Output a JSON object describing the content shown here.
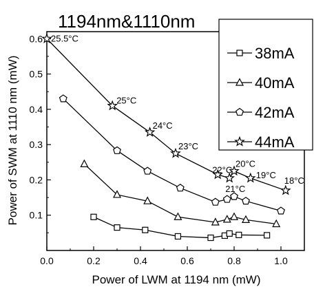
{
  "chart_data": {
    "type": "line",
    "title": "1194nm&1110nm",
    "xlabel": "Power of LWM at 1194 nm (mW)",
    "ylabel": "Power of SWM at 1110 nm (mW)",
    "xlim": [
      0.0,
      1.1
    ],
    "ylim": [
      0.0,
      0.62
    ],
    "xticks": [
      0.0,
      0.2,
      0.4,
      0.6,
      0.8,
      1.0
    ],
    "xtick_labels": [
      "0.0",
      "0.2",
      "0.4",
      "0.6",
      "0.8",
      "1.0"
    ],
    "yticks": [
      0.1,
      0.2,
      0.3,
      0.4,
      0.5,
      0.6
    ],
    "ytick_labels": [
      "0.1",
      "0.2",
      "0.3",
      "0.4",
      "0.5",
      "0.6"
    ],
    "grid": false,
    "legend_position": "top-right",
    "series": [
      {
        "name": "38mA",
        "marker": "square",
        "points": [
          [
            0.2,
            0.095
          ],
          [
            0.3,
            0.065
          ],
          [
            0.42,
            0.058
          ],
          [
            0.56,
            0.04
          ],
          [
            0.7,
            0.036
          ],
          [
            0.76,
            0.042
          ],
          [
            0.78,
            0.048
          ],
          [
            0.82,
            0.044
          ],
          [
            0.94,
            0.043
          ]
        ]
      },
      {
        "name": "40mA",
        "marker": "triangle",
        "points": [
          [
            0.16,
            0.245
          ],
          [
            0.3,
            0.158
          ],
          [
            0.43,
            0.14
          ],
          [
            0.56,
            0.095
          ],
          [
            0.72,
            0.08
          ],
          [
            0.77,
            0.088
          ],
          [
            0.8,
            0.095
          ],
          [
            0.85,
            0.087
          ],
          [
            0.98,
            0.075
          ]
        ]
      },
      {
        "name": "42mA",
        "marker": "pentagon",
        "points": [
          [
            0.07,
            0.43
          ],
          [
            0.3,
            0.283
          ],
          [
            0.43,
            0.225
          ],
          [
            0.57,
            0.177
          ],
          [
            0.72,
            0.137
          ],
          [
            0.77,
            0.145
          ],
          [
            0.8,
            0.153
          ],
          [
            0.85,
            0.14
          ],
          [
            1.0,
            0.112
          ]
        ]
      },
      {
        "name": "44mA",
        "marker": "star",
        "points": [
          [
            0.0,
            0.6
          ],
          [
            0.28,
            0.41
          ],
          [
            0.44,
            0.335
          ],
          [
            0.55,
            0.275
          ],
          [
            0.73,
            0.215
          ],
          [
            0.78,
            0.205
          ],
          [
            0.8,
            0.225
          ],
          [
            0.87,
            0.205
          ],
          [
            1.02,
            0.17
          ]
        ]
      }
    ],
    "annotations": [
      {
        "text": "25.5°C",
        "x": 0.0,
        "y": 0.6
      },
      {
        "text": "25°C",
        "x": 0.28,
        "y": 0.41
      },
      {
        "text": "24°C",
        "x": 0.44,
        "y": 0.335
      },
      {
        "text": "23°C",
        "x": 0.55,
        "y": 0.275
      },
      {
        "text": "22°C",
        "x": 0.73,
        "y": 0.215
      },
      {
        "text": "21°C",
        "x": 0.78,
        "y": 0.205
      },
      {
        "text": "20°C",
        "x": 0.8,
        "y": 0.225
      },
      {
        "text": "19°C",
        "x": 0.87,
        "y": 0.205
      },
      {
        "text": "18°C",
        "x": 1.02,
        "y": 0.17
      }
    ]
  }
}
